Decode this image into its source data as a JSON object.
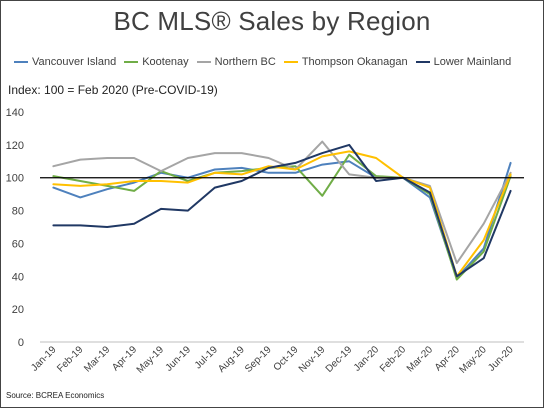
{
  "chart_data": {
    "type": "line",
    "title": "BC MLS® Sales by Region",
    "subtitle": "Index: 100 = Feb 2020 (Pre-COVID-19)",
    "source": "Source: BCREA Economics",
    "categories": [
      "Jan-19",
      "Feb-19",
      "Mar-19",
      "Apr-19",
      "May-19",
      "Jun-19",
      "Jul-19",
      "Aug-19",
      "Sep-19",
      "Oct-19",
      "Nov-19",
      "Dec-19",
      "Jan-20",
      "Feb-20",
      "Mar-20",
      "Apr-20",
      "May-20",
      "Jun-20"
    ],
    "ylim": [
      0,
      140
    ],
    "yticks": [
      0,
      20,
      40,
      60,
      80,
      100,
      120,
      140
    ],
    "reference_line": 100,
    "grid": false,
    "legend_position": "top",
    "series": [
      {
        "name": "Vancouver Island",
        "color": "#4e81bd",
        "values": [
          94,
          88,
          93,
          97,
          103,
          100,
          105,
          106,
          103,
          103,
          108,
          110,
          100,
          100,
          88,
          39,
          57,
          109
        ]
      },
      {
        "name": "Kootenay",
        "color": "#70ad47",
        "values": [
          101,
          98,
          95,
          92,
          104,
          98,
          103,
          104,
          106,
          107,
          89,
          114,
          101,
          100,
          90,
          38,
          55,
          101
        ]
      },
      {
        "name": "Northern BC",
        "color": "#a5a5a5",
        "values": [
          107,
          111,
          112,
          112,
          104,
          112,
          115,
          115,
          112,
          105,
          122,
          102,
          100,
          100,
          95,
          48,
          72,
          103
        ]
      },
      {
        "name": "Thompson Okanagan",
        "color": "#ffc000",
        "values": [
          96,
          95,
          96,
          98,
          98,
          97,
          103,
          102,
          107,
          105,
          113,
          116,
          112,
          100,
          94,
          40,
          62,
          102
        ]
      },
      {
        "name": "Lower Mainland",
        "color": "#203864",
        "values": [
          71,
          71,
          70,
          72,
          81,
          80,
          94,
          98,
          106,
          109,
          115,
          120,
          98,
          100,
          91,
          40,
          51,
          92
        ]
      }
    ]
  }
}
